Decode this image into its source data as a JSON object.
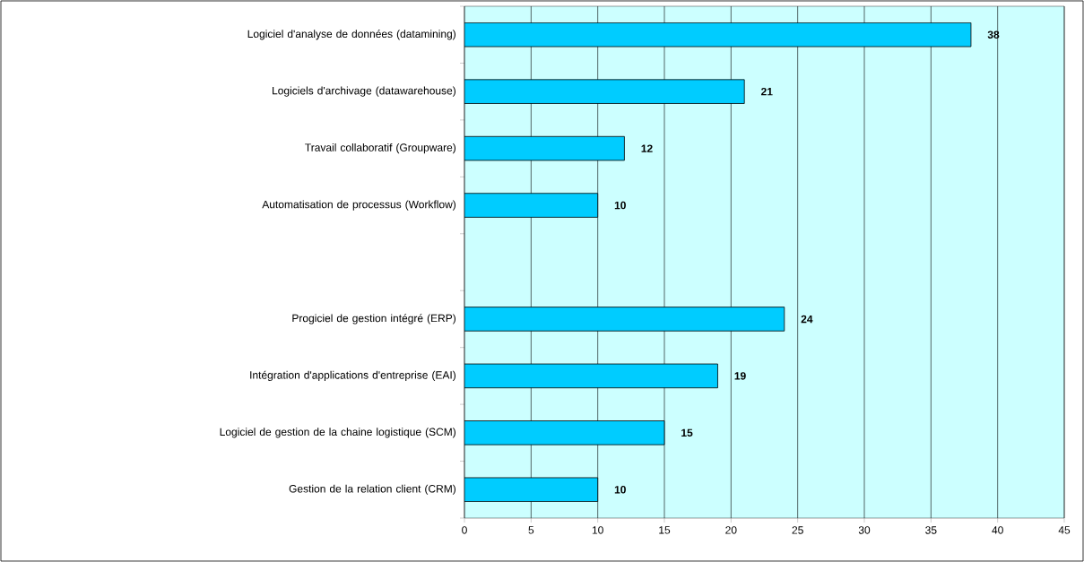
{
  "chart_data": {
    "type": "bar",
    "orientation": "horizontal",
    "categories": [
      "Logiciel d'analyse de données (datamining)",
      "Logiciels d'archivage (datawarehouse)",
      "Travail collaboratif (Groupware)",
      "Automatisation de processus (Workflow)",
      null,
      "Progiciel de gestion intégré (ERP)",
      "Intégration d'applications d'entreprise (EAI)",
      "Logiciel de gestion de la chaine logistique (SCM)",
      "Gestion de la relation client (CRM)"
    ],
    "values": [
      38,
      21,
      12,
      10,
      null,
      24,
      19,
      15,
      10
    ],
    "color": "#00ccff",
    "xlim": [
      0,
      45
    ],
    "xticks": [
      0,
      5,
      10,
      15,
      20,
      25,
      30,
      35,
      40,
      45
    ],
    "grid": "x",
    "data_labels": true
  }
}
